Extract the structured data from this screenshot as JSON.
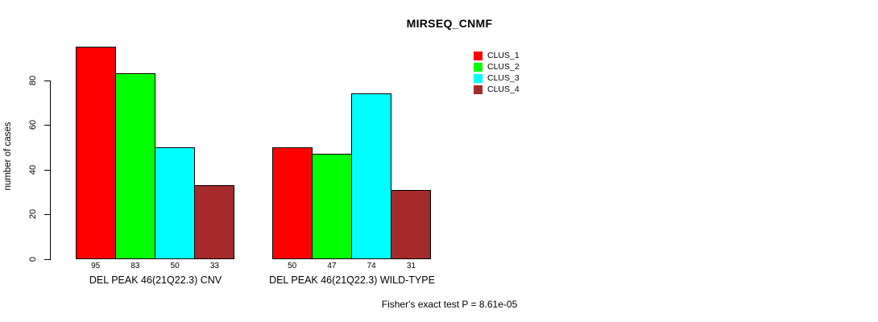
{
  "chart_data": {
    "type": "bar",
    "title": "MIRSEQ_CNMF",
    "xlabel": "",
    "ylabel": "number of cases",
    "ylim": [
      0,
      95
    ],
    "yticks": [
      0,
      20,
      40,
      60,
      80
    ],
    "grid": false,
    "legend_position": "top-right",
    "categories": [
      "DEL PEAK 46(21Q22.3) CNV",
      "DEL PEAK 46(21Q22.3) WILD-TYPE"
    ],
    "series": [
      {
        "name": "CLUS_1",
        "color": "#FF0000",
        "values": [
          95,
          50
        ]
      },
      {
        "name": "CLUS_2",
        "color": "#00FF00",
        "values": [
          83,
          47
        ]
      },
      {
        "name": "CLUS_3",
        "color": "#00FFFF",
        "values": [
          50,
          74
        ]
      },
      {
        "name": "CLUS_4",
        "color": "#A52A2A",
        "values": [
          33,
          31
        ]
      }
    ],
    "groups": [
      {
        "label": "DEL PEAK 46(21Q22.3) CNV",
        "values": [
          95,
          83,
          50,
          33
        ]
      },
      {
        "label": "DEL PEAK 46(21Q22.3) WILD-TYPE",
        "values": [
          50,
          47,
          74,
          31
        ]
      }
    ],
    "bar_border_color": "#000000",
    "annotation": "Fisher's exact test P = 8.61e-05"
  }
}
